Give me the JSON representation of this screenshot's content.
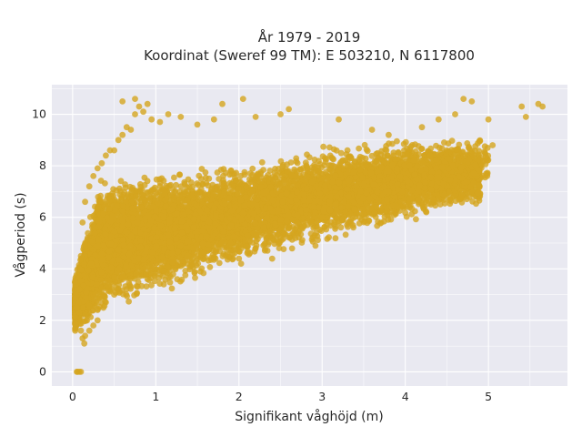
{
  "chart_data": {
    "type": "scatter",
    "title_lines": [
      "År 1979 - 2019",
      "Koordinat (Sweref 99 TM): E 503210, N 6117800"
    ],
    "xlabel": "Signifikant våghöjd (m)",
    "ylabel": "Vågperiod (s)",
    "xlim": [
      -0.25,
      5.95
    ],
    "ylim": [
      -0.55,
      11.15
    ],
    "xticks": [
      "0",
      "1",
      "2",
      "3",
      "4",
      "5"
    ],
    "yticks": [
      "0",
      "2",
      "4",
      "6",
      "8",
      "10"
    ],
    "grid": true,
    "colors": {
      "point": "#d4a51f",
      "plot_bg": "#e9e9f1",
      "grid": "#ffffff"
    },
    "series": [
      {
        "points": [
          [
            0.05,
            0
          ],
          [
            0.06,
            0
          ],
          [
            0.08,
            0
          ],
          [
            0.1,
            0
          ],
          [
            0.1,
            1.6
          ],
          [
            0.12,
            1.3
          ],
          [
            0.14,
            1.1
          ],
          [
            0.15,
            1.4
          ],
          [
            0.2,
            1.6
          ],
          [
            0.25,
            1.8
          ],
          [
            0.3,
            2.0
          ],
          [
            0.05,
            2.5
          ],
          [
            0.08,
            3.2
          ],
          [
            0.1,
            4.5
          ],
          [
            0.12,
            5.8
          ],
          [
            0.15,
            6.6
          ],
          [
            0.2,
            7.2
          ],
          [
            0.25,
            7.6
          ],
          [
            0.3,
            7.9
          ],
          [
            0.35,
            8.1
          ],
          [
            0.4,
            8.4
          ],
          [
            0.45,
            8.6
          ],
          [
            0.5,
            8.6
          ],
          [
            0.55,
            9.0
          ],
          [
            0.6,
            9.2
          ],
          [
            0.65,
            9.5
          ],
          [
            0.7,
            9.4
          ],
          [
            0.75,
            10.0
          ],
          [
            0.8,
            10.3
          ],
          [
            0.85,
            10.1
          ],
          [
            0.9,
            10.4
          ],
          [
            0.6,
            10.5
          ],
          [
            0.75,
            10.6
          ],
          [
            0.95,
            9.8
          ],
          [
            1.05,
            9.7
          ],
          [
            1.15,
            10.0
          ],
          [
            1.3,
            9.9
          ],
          [
            1.5,
            9.6
          ],
          [
            1.7,
            9.8
          ],
          [
            1.8,
            10.4
          ],
          [
            2.05,
            10.6
          ],
          [
            2.2,
            9.9
          ],
          [
            2.5,
            10.0
          ],
          [
            2.6,
            10.2
          ],
          [
            3.2,
            9.8
          ],
          [
            3.6,
            9.4
          ],
          [
            3.8,
            9.2
          ],
          [
            4.2,
            9.5
          ],
          [
            4.4,
            9.8
          ],
          [
            4.6,
            10.0
          ],
          [
            4.7,
            10.6
          ],
          [
            4.8,
            10.5
          ],
          [
            5.0,
            9.8
          ],
          [
            5.05,
            8.8
          ],
          [
            5.4,
            10.3
          ],
          [
            5.45,
            9.9
          ],
          [
            5.6,
            10.4
          ],
          [
            5.65,
            10.3
          ],
          [
            0.3,
            2.4
          ],
          [
            0.4,
            2.7
          ],
          [
            0.5,
            3.0
          ],
          [
            0.7,
            3.3
          ],
          [
            0.9,
            3.6
          ],
          [
            1.1,
            3.9
          ],
          [
            1.3,
            4.1
          ],
          [
            1.5,
            4.4
          ],
          [
            1.7,
            4.7
          ],
          [
            1.9,
            5.0
          ],
          [
            2.1,
            5.3
          ],
          [
            2.3,
            5.6
          ],
          [
            2.5,
            5.9
          ],
          [
            2.7,
            6.1
          ],
          [
            2.9,
            6.4
          ],
          [
            3.1,
            6.8
          ],
          [
            3.3,
            7.1
          ],
          [
            3.5,
            7.3
          ],
          [
            3.7,
            7.6
          ],
          [
            3.9,
            7.9
          ],
          [
            4.1,
            8.2
          ],
          [
            4.3,
            8.4
          ],
          [
            4.5,
            8.6
          ],
          [
            2.0,
            4.4
          ],
          [
            2.2,
            4.8
          ],
          [
            2.4,
            5.2
          ],
          [
            3.0,
            6.0
          ],
          [
            4.25,
            7.9
          ],
          [
            3.8,
            7.0
          ],
          [
            4.05,
            8.0
          ],
          [
            2.6,
            6.1
          ]
        ]
      }
    ],
    "cloud": {
      "count": 9000,
      "x_min": 0.03,
      "x_max": 4.9,
      "note": "dense cloud sampled within lower/upper period bands vs wave height"
    }
  }
}
